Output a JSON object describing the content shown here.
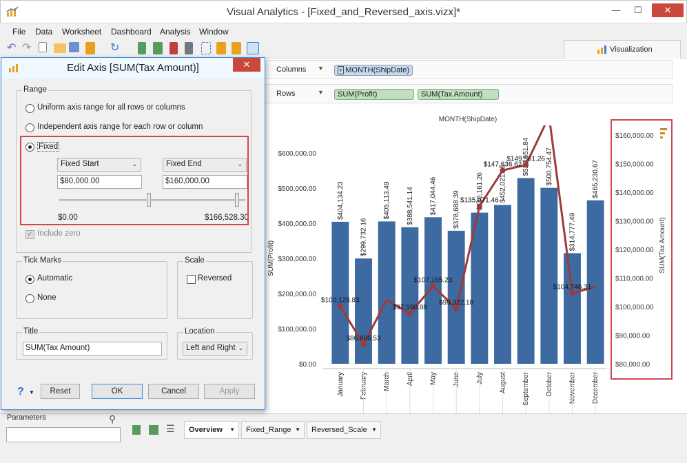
{
  "window": {
    "title": "Visual Analytics - [Fixed_and_Reversed_axis.vizx]*"
  },
  "menu": [
    "File",
    "Data",
    "Worksheet",
    "Dashboard",
    "Analysis",
    "Window"
  ],
  "viz_tab": "Visualization",
  "shelves": {
    "columns": {
      "label": "Columns",
      "pills": [
        "MONTH(ShipDate)"
      ]
    },
    "rows": {
      "label": "Rows",
      "pills": [
        "SUM(Profit)",
        "SUM(Tax Amount)"
      ]
    }
  },
  "dialog": {
    "title": "Edit Axis [SUM(Tax Amount)]",
    "close_glyph": "✕",
    "range": {
      "label": "Range",
      "opt_uniform": "Uniform axis range for all rows or columns",
      "opt_independent": "Independent axis range for each row or column",
      "opt_fixed": "Fixed",
      "fixed_start_label": "Fixed Start",
      "fixed_end_label": "Fixed End",
      "fixed_start_value": "$80,000.00",
      "fixed_end_value": "$160,000.00",
      "slider_min": "$0.00",
      "slider_max": "$166,528.30",
      "include_zero": "Include zero"
    },
    "tick_marks": {
      "label": "Tick Marks",
      "automatic": "Automatic",
      "none": "None"
    },
    "scale": {
      "label": "Scale",
      "reversed": "Reversed"
    },
    "title_group": {
      "label": "Title",
      "value": "SUM(Tax Amount)"
    },
    "location": {
      "label": "Location",
      "value": "Left and Right"
    },
    "help_glyph": "?",
    "buttons": {
      "reset": "Reset",
      "ok": "OK",
      "cancel": "Cancel",
      "apply": "Apply"
    }
  },
  "bottom": {
    "parameters_label": "Parameters",
    "sheets": [
      "Overview",
      "Fixed_Range",
      "Reversed_Scale"
    ]
  },
  "chart_data": {
    "type": "bar",
    "title": "MONTH(ShipDate)",
    "categories": [
      "January",
      "February",
      "March",
      "April",
      "May",
      "June",
      "July",
      "August",
      "September",
      "October",
      "November",
      "December"
    ],
    "series": [
      {
        "name": "SUM(Profit)",
        "type": "bar",
        "color": "#3e6aa2",
        "values": [
          404134.23,
          299732.16,
          405113.49,
          388541.14,
          417044.46,
          378688.39,
          430161.26,
          452021.65,
          528651.84,
          500754.47,
          314777.49,
          465230.67
        ],
        "labels": [
          "$404,134.23",
          "$299,732.16",
          "$405,113.49",
          "$388,541.14",
          "$417,044.46",
          "$378,688.39",
          "$430,161.26",
          "$452,021.65",
          "$528,651.84",
          "$500,754.47",
          "$314,777.49",
          "$465,230.67"
        ]
      },
      {
        "name": "SUM(Tax Amount)",
        "type": "line",
        "color": "#9e3a38",
        "values": [
          100128.83,
          86806.53,
          102300,
          97590.88,
          107165.23,
          99322.18,
          135071.46,
          147636.62,
          149561.26,
          166528.3,
          104746.31,
          106900
        ],
        "labels": [
          "$100,128.83",
          "$86,806.53",
          "",
          "$97,590.88",
          "$107,165.23",
          "$99,322.18",
          "$135,071.46",
          "$147,636.62",
          "$149,561.26",
          "",
          "$104,746.31",
          ""
        ]
      }
    ],
    "ylabel": "SUM(Profit)",
    "ylabel_right": "SUM(Tax Amount)",
    "ylim": [
      0,
      600000
    ],
    "ylim_right": [
      80000,
      160000
    ],
    "yticks": [
      "$0.00",
      "$100,000.00",
      "$200,000.00",
      "$300,000.00",
      "$400,000.00",
      "$500,000.00",
      "$600,000.00"
    ],
    "yticks_right": [
      "$80,000.00",
      "$90,000.00",
      "$100,000.00",
      "$110,000.00",
      "$120,000.00",
      "$130,000.00",
      "$140,000.00",
      "$150,000.00",
      "$160,000.00"
    ]
  }
}
